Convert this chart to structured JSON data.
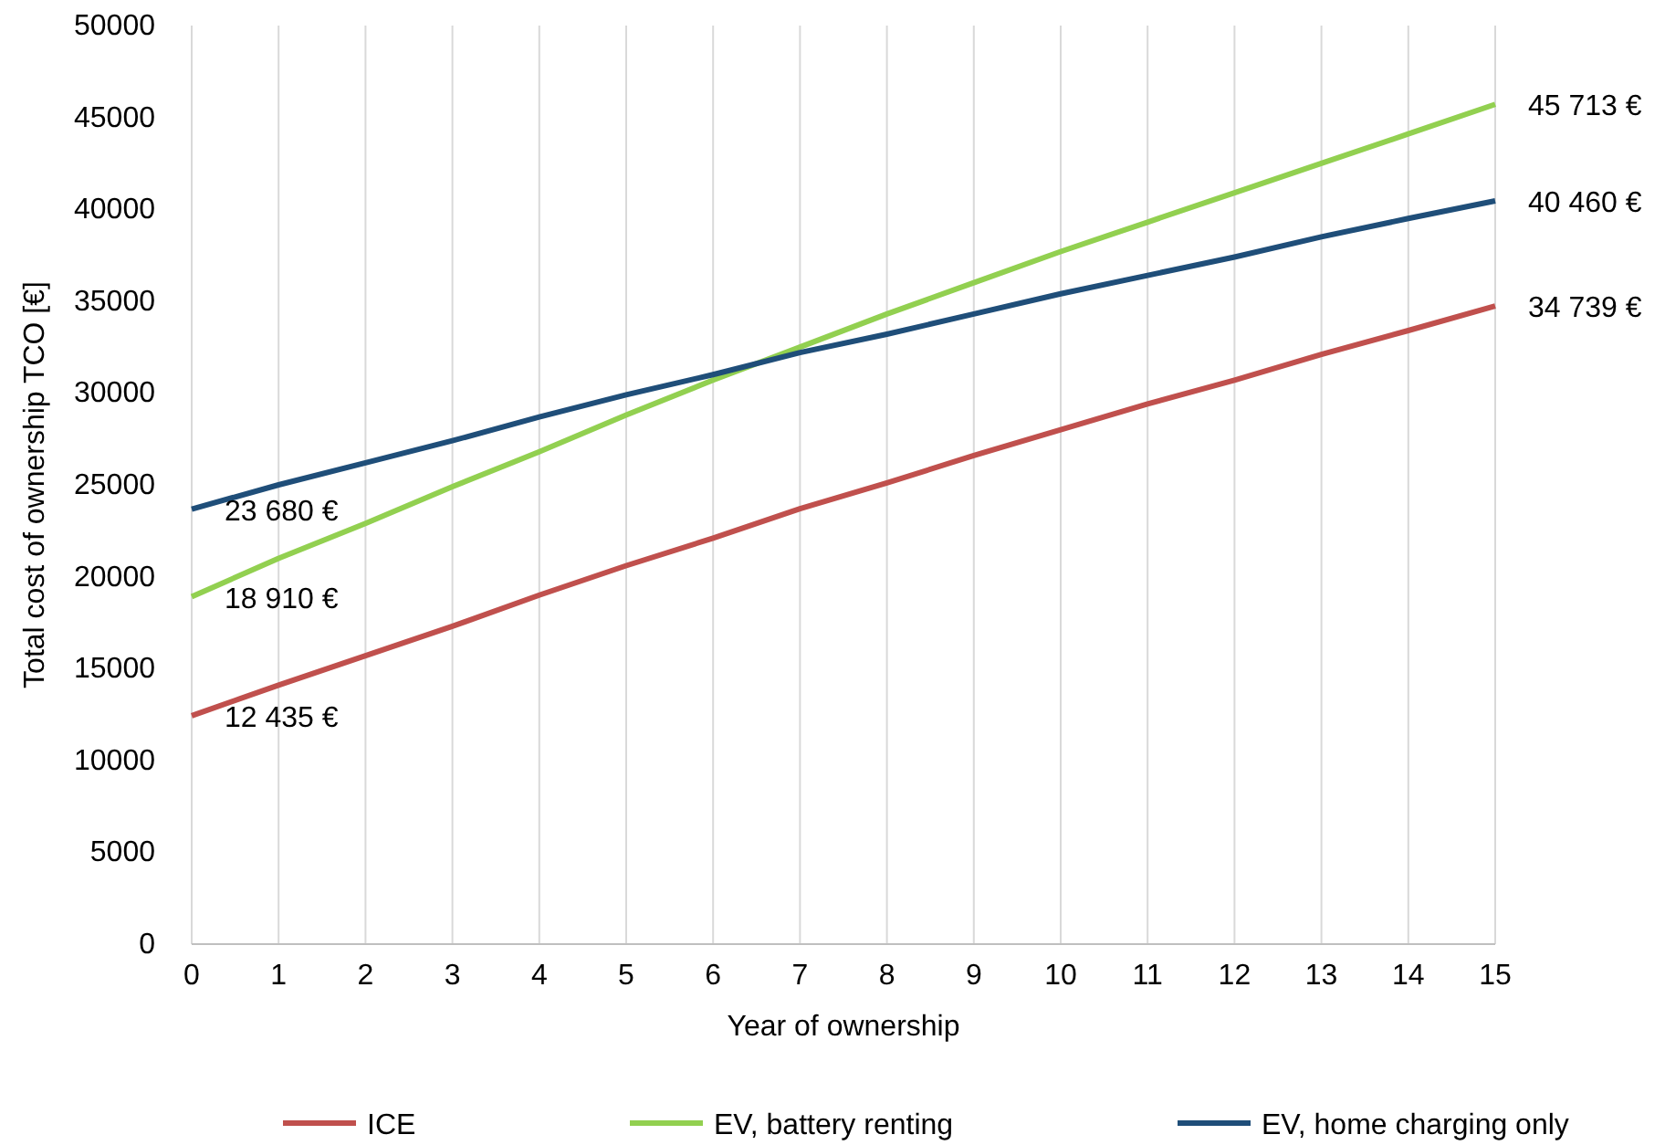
{
  "chart_data": {
    "type": "line",
    "xlabel": "Year of ownership",
    "ylabel": "Total cost of ownership TCO [€]",
    "x": [
      0,
      1,
      2,
      3,
      4,
      5,
      6,
      7,
      8,
      9,
      10,
      11,
      12,
      13,
      14,
      15
    ],
    "xlim": [
      0,
      15
    ],
    "xticks": [
      0,
      1,
      2,
      3,
      4,
      5,
      6,
      7,
      8,
      9,
      10,
      11,
      12,
      13,
      14,
      15
    ],
    "ylim": [
      0,
      50000
    ],
    "yticks": [
      0,
      5000,
      10000,
      15000,
      20000,
      25000,
      30000,
      35000,
      40000,
      45000,
      50000
    ],
    "grid": "x",
    "legend": "bottom",
    "marker": "none",
    "line_style": "solid",
    "series": [
      {
        "name": "ICE",
        "color": "#c0504d",
        "values": [
          12435,
          14100,
          15700,
          17300,
          19000,
          20600,
          22100,
          23700,
          25100,
          26600,
          28000,
          29400,
          30700,
          32100,
          33400,
          34739
        ],
        "value_labels": [
          "12 435 €",
          null,
          null,
          null,
          null,
          null,
          null,
          null,
          null,
          null,
          null,
          null,
          null,
          null,
          null,
          "34 739 €"
        ]
      },
      {
        "name": "EV, battery renting",
        "color": "#92d050",
        "values": [
          18910,
          21000,
          22900,
          24900,
          26800,
          28800,
          30700,
          32500,
          34300,
          36000,
          37700,
          39300,
          40900,
          42500,
          44100,
          45713
        ],
        "value_labels": [
          "18 910 €",
          null,
          null,
          null,
          null,
          null,
          null,
          null,
          null,
          null,
          null,
          null,
          null,
          null,
          null,
          "45 713 €"
        ]
      },
      {
        "name": "EV, home charging only",
        "color": "#1f4e79",
        "values": [
          23680,
          25000,
          26200,
          27400,
          28700,
          29900,
          31000,
          32200,
          33200,
          34300,
          35400,
          36400,
          37400,
          38500,
          39500,
          40460
        ],
        "value_labels": [
          "23 680 €",
          null,
          null,
          null,
          null,
          null,
          null,
          null,
          null,
          null,
          null,
          null,
          null,
          null,
          null,
          "40 460 €"
        ]
      }
    ]
  }
}
